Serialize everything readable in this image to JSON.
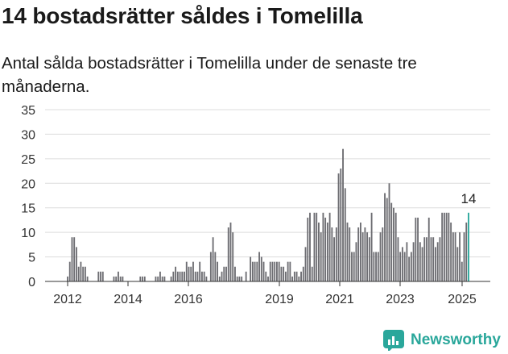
{
  "header": {
    "title": "14 bostadsrätter såldes i Tomelilla",
    "subtitle": "Antal sålda bostadsrätter i Tomelilla under de senaste tre månaderna."
  },
  "brand": {
    "name": "Newsworthy",
    "icon": "newsworthy-logo-icon",
    "color": "#2aa79b"
  },
  "chart_data": {
    "type": "bar",
    "title": "",
    "xlabel": "",
    "ylabel": "",
    "ylim": [
      0,
      35
    ],
    "yticks": [
      0,
      5,
      10,
      15,
      20,
      25,
      30,
      35
    ],
    "xticks": [
      "2012",
      "2014",
      "2016",
      "2019",
      "2021",
      "2023",
      "2025"
    ],
    "grid": true,
    "bar_color": "#6d6d72",
    "highlight_color": "#2aa79b",
    "highlight_label": "14",
    "series": [
      {
        "values": [
          1,
          4,
          9,
          9,
          7,
          3,
          4,
          3,
          3,
          1,
          0,
          0,
          0,
          0,
          2,
          2,
          2,
          0,
          0,
          0,
          0,
          1,
          1,
          2,
          1,
          1,
          0,
          0,
          0,
          0,
          0,
          0,
          0,
          1,
          1,
          1,
          0,
          0,
          0,
          0,
          1,
          1,
          2,
          1,
          1,
          0,
          0,
          1,
          2,
          3,
          2,
          2,
          2,
          2,
          4,
          3,
          3,
          4,
          2,
          2,
          4,
          2,
          2,
          1,
          0,
          6,
          9,
          6,
          4,
          1,
          2,
          3,
          3,
          11,
          12,
          10,
          3,
          1,
          1,
          1,
          0,
          2,
          0,
          5,
          4,
          4,
          4,
          6,
          5,
          4,
          2,
          1,
          4,
          4,
          4,
          4,
          4,
          3,
          3,
          2,
          4,
          4,
          1,
          2,
          2,
          1,
          2,
          3,
          7,
          13,
          14,
          3,
          14,
          14,
          12,
          10,
          14,
          13,
          12,
          14,
          11,
          9,
          11,
          22,
          23,
          27,
          19,
          12,
          11,
          6,
          6,
          8,
          11,
          12,
          10,
          11,
          10,
          9,
          14,
          6,
          6,
          6,
          10,
          11,
          18,
          17,
          20,
          16,
          15,
          14,
          9,
          6,
          7,
          6,
          8,
          5,
          6,
          8,
          13,
          13,
          8,
          7,
          9,
          9,
          13,
          9,
          9,
          7,
          8,
          9,
          14,
          14,
          14,
          14,
          12,
          10,
          10,
          7,
          10,
          4,
          10,
          12,
          14
        ]
      }
    ]
  }
}
